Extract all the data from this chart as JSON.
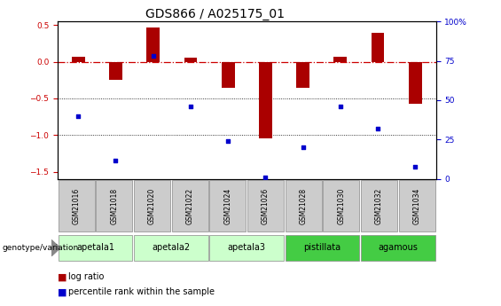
{
  "title": "GDS866 / A025175_01",
  "samples": [
    "GSM21016",
    "GSM21018",
    "GSM21020",
    "GSM21022",
    "GSM21024",
    "GSM21026",
    "GSM21028",
    "GSM21030",
    "GSM21032",
    "GSM21034"
  ],
  "log_ratio": [
    0.07,
    -0.25,
    0.47,
    0.05,
    -0.35,
    -1.05,
    -0.35,
    0.07,
    0.4,
    -0.57
  ],
  "percentile_rank": [
    40,
    12,
    78,
    46,
    24,
    1,
    20,
    46,
    32,
    8
  ],
  "group_defs": [
    {
      "label": "apetala1",
      "start": 0,
      "end": 2,
      "color": "#ccffcc"
    },
    {
      "label": "apetala2",
      "start": 2,
      "end": 4,
      "color": "#ccffcc"
    },
    {
      "label": "apetala3",
      "start": 4,
      "end": 6,
      "color": "#ccffcc"
    },
    {
      "label": "pistillata",
      "start": 6,
      "end": 8,
      "color": "#44cc44"
    },
    {
      "label": "agamous",
      "start": 8,
      "end": 10,
      "color": "#44cc44"
    }
  ],
  "bar_color": "#aa0000",
  "dot_color": "#0000cc",
  "ylim_left": [
    -1.6,
    0.55
  ],
  "ylim_right": [
    0,
    100
  ],
  "yticks_left": [
    -1.5,
    -1.0,
    -0.5,
    0.0,
    0.5
  ],
  "yticks_right": [
    0,
    25,
    50,
    75,
    100
  ],
  "hline_y": 0.0,
  "dotted_lines": [
    -0.5,
    -1.0
  ],
  "bar_width": 0.35,
  "background_color": "#ffffff",
  "sample_bg": "#cccccc",
  "title_fontsize": 10,
  "tick_fontsize": 6.5,
  "sample_fontsize": 5.5,
  "group_fontsize": 7,
  "legend_fontsize": 7
}
